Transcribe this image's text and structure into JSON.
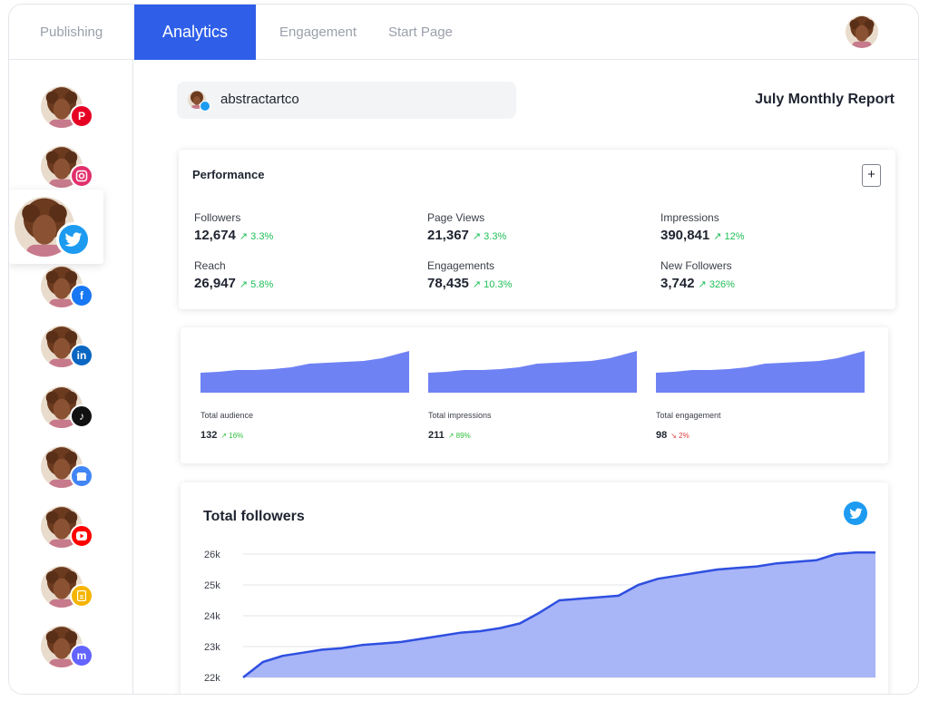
{
  "nav": {
    "tabs": [
      {
        "label": "Publishing"
      },
      {
        "label": "Analytics"
      },
      {
        "label": "Engagement"
      },
      {
        "label": "Start Page"
      }
    ],
    "active_tab": "Analytics"
  },
  "sidebar": {
    "accounts": [
      {
        "network": "pinterest",
        "icon": "pinterest-icon",
        "color": "#e60023"
      },
      {
        "network": "instagram",
        "icon": "instagram-icon",
        "color": "#e1306c"
      },
      {
        "network": "twitter",
        "icon": "twitter-icon",
        "color": "#1d9bf0",
        "active": true
      },
      {
        "network": "facebook",
        "icon": "facebook-icon",
        "color": "#1877f2"
      },
      {
        "network": "linkedin",
        "icon": "linkedin-icon",
        "color": "#0a66c2"
      },
      {
        "network": "tiktok",
        "icon": "tiktok-icon",
        "color": "#111111"
      },
      {
        "network": "google-business",
        "icon": "google-business-icon",
        "color": "#4285f4"
      },
      {
        "network": "youtube",
        "icon": "youtube-icon",
        "color": "#ff0000"
      },
      {
        "network": "start-page",
        "icon": "start-page-icon",
        "color": "#f5b400"
      },
      {
        "network": "mastodon",
        "icon": "mastodon-icon",
        "color": "#6364ff"
      }
    ]
  },
  "account": {
    "name": "abstractartco"
  },
  "report": {
    "title": "July Monthly Report"
  },
  "performance": {
    "title": "Performance",
    "add_label": "+",
    "metrics": [
      {
        "label": "Followers",
        "value": "12,674",
        "change": "↗ 3.3%"
      },
      {
        "label": "Page Views",
        "value": "21,367",
        "change": "↗ 3.3%"
      },
      {
        "label": "Impressions",
        "value": "390,841",
        "change": "↗ 12%"
      },
      {
        "label": "Reach",
        "value": "26,947",
        "change": "↗ 5.8%"
      },
      {
        "label": "Engagements",
        "value": "78,435",
        "change": "↗ 10.3%"
      },
      {
        "label": "New Followers",
        "value": "3,742",
        "change": "↗ 326%"
      }
    ]
  },
  "mini_charts": [
    {
      "label": "Total audience",
      "value": "132",
      "change": "↗ 16%",
      "direction": "up"
    },
    {
      "label": "Total impressions",
      "value": "211",
      "change": "↗ 89%",
      "direction": "up"
    },
    {
      "label": "Total engagement",
      "value": "98",
      "change": "↘ 2%",
      "direction": "down"
    }
  ],
  "colors": {
    "accent": "#2f5fe8",
    "area_fill": "#a8b5f7",
    "area_line": "#2f4fe0",
    "mini_fill": "#6f82f4",
    "positive": "#1fbf57",
    "negative": "#e23c3c"
  },
  "chart_data": {
    "type": "area",
    "title": "Total followers",
    "icon": "twitter-icon",
    "yticks": [
      "26k",
      "25k",
      "24k",
      "23k",
      "22k"
    ],
    "ylim": [
      22000,
      26000
    ],
    "grid": true,
    "series": [
      {
        "values": [
          22000,
          22500,
          22700,
          22800,
          22900,
          22950,
          23050,
          23100,
          23150,
          23250,
          23350,
          23450,
          23500,
          23600,
          23750,
          24100,
          24500,
          24550,
          24600,
          24650,
          25000,
          25200,
          25300,
          25400,
          25500,
          25550,
          25600,
          25700,
          25750,
          25800,
          26000,
          26050,
          26050
        ]
      }
    ]
  }
}
